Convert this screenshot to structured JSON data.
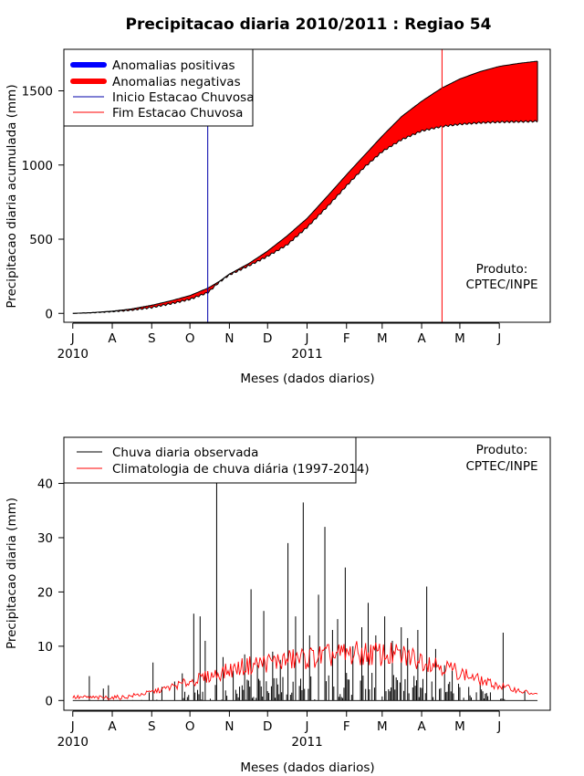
{
  "chart_data": [
    {
      "type": "area",
      "title": "Precipitacao diaria 2010/2011 : Regiao 54",
      "xlabel": "Meses (dados diarios)",
      "ylabel": "Precipitacao diaria acumulada (mm)",
      "xlim_days": [
        -7,
        375
      ],
      "ylim": [
        -60,
        1780
      ],
      "yticks": [
        0,
        500,
        1000,
        1500
      ],
      "month_ticks": [
        {
          "label": "J",
          "day": 0
        },
        {
          "label": "A",
          "day": 31
        },
        {
          "label": "S",
          "day": 62
        },
        {
          "label": "O",
          "day": 92
        },
        {
          "label": "N",
          "day": 123
        },
        {
          "label": "D",
          "day": 153
        },
        {
          "label": "J",
          "day": 184
        },
        {
          "label": "F",
          "day": 215
        },
        {
          "label": "M",
          "day": 243
        },
        {
          "label": "A",
          "day": 274
        },
        {
          "label": "M",
          "day": 304
        },
        {
          "label": "J",
          "day": 335
        }
      ],
      "year_labels": [
        {
          "label": "2010",
          "day": 0
        },
        {
          "label": "2011",
          "day": 184
        }
      ],
      "legend": [
        {
          "label": "Anomalias positivas",
          "color": "#0000ff",
          "style": "thick"
        },
        {
          "label": "Anomalias negativas",
          "color": "#ff0000",
          "style": "thick"
        },
        {
          "label": "Inicio Estacao Chuvosa",
          "color": "#0000aa",
          "style": "thin"
        },
        {
          "label": "Fim Estacao Chuvosa",
          "color": "#ff0000",
          "style": "thin"
        }
      ],
      "credit": [
        "Produto:",
        "CPTEC/INPE"
      ],
      "rainy_season_start_day": 106,
      "rainy_season_end_day": 290,
      "series": [
        {
          "name": "Climatologia acumulada",
          "days": [
            0,
            15,
            31,
            46,
            62,
            77,
            92,
            106,
            115,
            123,
            138,
            153,
            168,
            184,
            200,
            215,
            229,
            243,
            258,
            274,
            290,
            304,
            320,
            335,
            350,
            365
          ],
          "values": [
            0,
            5,
            15,
            30,
            55,
            85,
            120,
            170,
            215,
            265,
            335,
            420,
            520,
            640,
            790,
            935,
            1065,
            1195,
            1325,
            1430,
            1520,
            1580,
            1630,
            1665,
            1685,
            1700
          ]
        },
        {
          "name": "Observado acumulado",
          "days": [
            0,
            15,
            31,
            46,
            62,
            77,
            92,
            106,
            115,
            123,
            138,
            153,
            168,
            184,
            200,
            215,
            229,
            243,
            258,
            274,
            290,
            304,
            320,
            335,
            350,
            365
          ],
          "values": [
            0,
            4,
            12,
            22,
            40,
            65,
            95,
            140,
            210,
            260,
            320,
            385,
            460,
            580,
            720,
            860,
            985,
            1090,
            1170,
            1230,
            1260,
            1275,
            1285,
            1290,
            1292,
            1295
          ]
        }
      ]
    },
    {
      "type": "line",
      "xlabel": "Meses (dados diarios)",
      "ylabel": "Precipitacao diaria (mm)",
      "xlim_days": [
        -7,
        375
      ],
      "ylim": [
        -1.8,
        48.5
      ],
      "yticks": [
        0,
        10,
        20,
        30,
        40
      ],
      "month_ticks": [
        {
          "label": "J",
          "day": 0
        },
        {
          "label": "A",
          "day": 31
        },
        {
          "label": "S",
          "day": 62
        },
        {
          "label": "O",
          "day": 92
        },
        {
          "label": "N",
          "day": 123
        },
        {
          "label": "D",
          "day": 153
        },
        {
          "label": "J",
          "day": 184
        },
        {
          "label": "F",
          "day": 215
        },
        {
          "label": "M",
          "day": 243
        },
        {
          "label": "A",
          "day": 274
        },
        {
          "label": "M",
          "day": 304
        },
        {
          "label": "J",
          "day": 335
        }
      ],
      "year_labels": [
        {
          "label": "2010",
          "day": 0
        },
        {
          "label": "2011",
          "day": 184
        }
      ],
      "legend": [
        {
          "label": "Chuva diaria observada",
          "color": "#000000",
          "style": "thin"
        },
        {
          "label": "Climatologia de chuva diária (1997-2014)",
          "color": "#ff0000",
          "style": "thin"
        }
      ],
      "credit": [
        "Produto:",
        "CPTEC/INPE"
      ],
      "observed_peaks": [
        {
          "day": 13,
          "value": 4.5
        },
        {
          "day": 24,
          "value": 2.2
        },
        {
          "day": 28,
          "value": 2.8
        },
        {
          "day": 60,
          "value": 1.5
        },
        {
          "day": 63,
          "value": 7.0
        },
        {
          "day": 70,
          "value": 2.5
        },
        {
          "day": 80,
          "value": 3.5
        },
        {
          "day": 86,
          "value": 5.0
        },
        {
          "day": 95,
          "value": 16.0
        },
        {
          "day": 100,
          "value": 15.5
        },
        {
          "day": 104,
          "value": 11.0
        },
        {
          "day": 113,
          "value": 40.0
        },
        {
          "day": 118,
          "value": 8.0
        },
        {
          "day": 126,
          "value": 5.5
        },
        {
          "day": 135,
          "value": 8.5
        },
        {
          "day": 140,
          "value": 20.5
        },
        {
          "day": 145,
          "value": 7.0
        },
        {
          "day": 150,
          "value": 16.5
        },
        {
          "day": 157,
          "value": 9.0
        },
        {
          "day": 163,
          "value": 7.5
        },
        {
          "day": 169,
          "value": 29.0
        },
        {
          "day": 175,
          "value": 15.5
        },
        {
          "day": 181,
          "value": 36.5
        },
        {
          "day": 186,
          "value": 12.0
        },
        {
          "day": 193,
          "value": 19.5
        },
        {
          "day": 198,
          "value": 32.0
        },
        {
          "day": 204,
          "value": 13.0
        },
        {
          "day": 208,
          "value": 15.0
        },
        {
          "day": 214,
          "value": 24.5
        },
        {
          "day": 220,
          "value": 10.0
        },
        {
          "day": 227,
          "value": 13.5
        },
        {
          "day": 232,
          "value": 18.0
        },
        {
          "day": 238,
          "value": 12.0
        },
        {
          "day": 245,
          "value": 15.5
        },
        {
          "day": 251,
          "value": 11.0
        },
        {
          "day": 258,
          "value": 13.5
        },
        {
          "day": 263,
          "value": 11.5
        },
        {
          "day": 271,
          "value": 13.0
        },
        {
          "day": 278,
          "value": 21.0
        },
        {
          "day": 285,
          "value": 9.5
        },
        {
          "day": 292,
          "value": 6.5
        },
        {
          "day": 298,
          "value": 5.5
        },
        {
          "day": 311,
          "value": 2.5
        },
        {
          "day": 320,
          "value": 3.0
        },
        {
          "day": 328,
          "value": 1.5
        },
        {
          "day": 338,
          "value": 12.5
        },
        {
          "day": 355,
          "value": 1.8
        }
      ],
      "climatology": {
        "days": [
          0,
          20,
          40,
          55,
          70,
          85,
          100,
          115,
          130,
          145,
          160,
          175,
          190,
          205,
          220,
          235,
          250,
          265,
          280,
          295,
          310,
          325,
          340,
          355,
          365
        ],
        "values": [
          0.6,
          0.5,
          0.6,
          1.2,
          2.0,
          3.0,
          4.0,
          5.0,
          6.0,
          6.8,
          7.2,
          7.6,
          8.0,
          8.3,
          8.6,
          8.6,
          8.4,
          8.0,
          7.2,
          6.0,
          4.6,
          3.3,
          2.4,
          1.6,
          1.0
        ]
      }
    }
  ]
}
